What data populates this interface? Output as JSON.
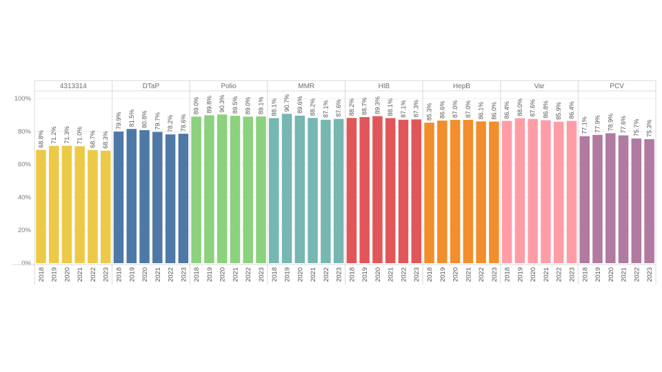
{
  "chart_data": {
    "type": "bar",
    "y_ticks": [
      "0%",
      "20%",
      "40%",
      "60%",
      "80%",
      "100%"
    ],
    "ylim": [
      0,
      100
    ],
    "categories": [
      "2018",
      "2019",
      "2020",
      "2021",
      "2022",
      "2023"
    ],
    "groups": [
      {
        "name": "4313314",
        "color": "#EDC948",
        "values": [
          68.8,
          71.2,
          71.3,
          71.0,
          68.7,
          68.3
        ],
        "labels": [
          "68.8%",
          "71.2%",
          "71.3%",
          "71.0%",
          "68.7%",
          "68.3%"
        ]
      },
      {
        "name": "DTaP",
        "color": "#4E79A7",
        "values": [
          79.9,
          81.5,
          80.8,
          79.7,
          78.2,
          78.6
        ],
        "labels": [
          "79.9%",
          "81.5%",
          "80.8%",
          "79.7%",
          "78.2%",
          "78.6%"
        ]
      },
      {
        "name": "Polio",
        "color": "#8CD17D",
        "values": [
          89.0,
          89.8,
          90.3,
          89.5,
          89.0,
          89.1
        ],
        "labels": [
          "89.0%",
          "89.8%",
          "90.3%",
          "89.5%",
          "89.0%",
          "89.1%"
        ]
      },
      {
        "name": "MMR",
        "color": "#76B7B2",
        "values": [
          88.1,
          90.7,
          89.6,
          88.2,
          87.1,
          87.6
        ],
        "labels": [
          "88.1%",
          "90.7%",
          "89.6%",
          "88.2%",
          "87.1%",
          "87.6%"
        ]
      },
      {
        "name": "HIB",
        "color": "#E15759",
        "values": [
          88.2,
          88.7,
          89.3,
          88.1,
          87.1,
          87.3
        ],
        "labels": [
          "88.2%",
          "88.7%",
          "89.3%",
          "88.1%",
          "87.1%",
          "87.3%"
        ]
      },
      {
        "name": "HepB",
        "color": "#F28E2B",
        "values": [
          85.3,
          86.6,
          87.0,
          87.0,
          86.1,
          86.0
        ],
        "labels": [
          "85.3%",
          "86.6%",
          "87.0%",
          "87.0%",
          "86.1%",
          "86.0%"
        ]
      },
      {
        "name": "Var",
        "color": "#FF9DA7",
        "values": [
          86.4,
          88.0,
          87.6,
          86.8,
          85.9,
          86.4
        ],
        "labels": [
          "86.4%",
          "88.0%",
          "87.6%",
          "86.8%",
          "85.9%",
          "86.4%"
        ]
      },
      {
        "name": "PCV",
        "color": "#B07AA1",
        "values": [
          77.1,
          77.9,
          78.9,
          77.6,
          75.7,
          75.3
        ],
        "labels": [
          "77.1%",
          "77.9%",
          "78.9%",
          "77.6%",
          "75.7%",
          "75.3%"
        ]
      }
    ]
  }
}
